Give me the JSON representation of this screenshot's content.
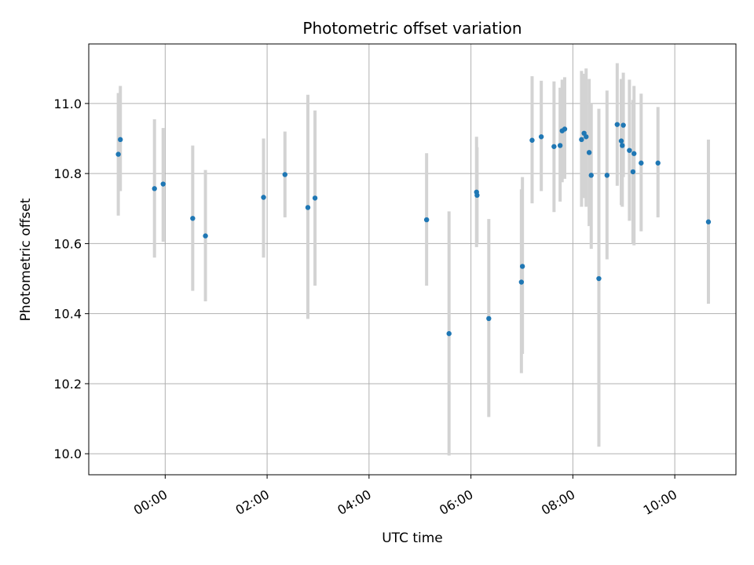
{
  "chart_data": {
    "type": "scatter",
    "title": "Photometric offset variation",
    "xlabel": "UTC time",
    "ylabel": "Photometric offset",
    "grid": true,
    "x_unit": "hours",
    "xlim": [
      -1.5,
      11.2
    ],
    "ylim": [
      9.94,
      11.17
    ],
    "xticks": [
      {
        "value": 0,
        "label": "00:00"
      },
      {
        "value": 2,
        "label": "02:00"
      },
      {
        "value": 4,
        "label": "04:00"
      },
      {
        "value": 6,
        "label": "06:00"
      },
      {
        "value": 8,
        "label": "08:00"
      },
      {
        "value": 10,
        "label": "10:00"
      }
    ],
    "yticks": [
      {
        "value": 10.0,
        "label": "10.0"
      },
      {
        "value": 10.2,
        "label": "10.2"
      },
      {
        "value": 10.4,
        "label": "10.4"
      },
      {
        "value": 10.6,
        "label": "10.6"
      },
      {
        "value": 10.8,
        "label": "10.8"
      },
      {
        "value": 11.0,
        "label": "11.0"
      }
    ],
    "marker_color": "#1f77b4",
    "errorbar_color": "#d3d3d3",
    "points": [
      {
        "x": -0.92,
        "y": 10.855,
        "lo": 10.68,
        "hi": 11.03
      },
      {
        "x": -0.88,
        "y": 10.897,
        "lo": 10.75,
        "hi": 11.05
      },
      {
        "x": -0.21,
        "y": 10.757,
        "lo": 10.56,
        "hi": 10.955
      },
      {
        "x": -0.04,
        "y": 10.77,
        "lo": 10.605,
        "hi": 10.93
      },
      {
        "x": 0.54,
        "y": 10.672,
        "lo": 10.465,
        "hi": 10.88
      },
      {
        "x": 0.79,
        "y": 10.622,
        "lo": 10.435,
        "hi": 10.81
      },
      {
        "x": 1.93,
        "y": 10.732,
        "lo": 10.56,
        "hi": 10.9
      },
      {
        "x": 2.35,
        "y": 10.797,
        "lo": 10.675,
        "hi": 10.92
      },
      {
        "x": 2.8,
        "y": 10.703,
        "lo": 10.385,
        "hi": 11.025
      },
      {
        "x": 2.94,
        "y": 10.73,
        "lo": 10.48,
        "hi": 10.98
      },
      {
        "x": 5.13,
        "y": 10.668,
        "lo": 10.48,
        "hi": 10.858
      },
      {
        "x": 5.57,
        "y": 10.343,
        "lo": 9.995,
        "hi": 10.692
      },
      {
        "x": 6.11,
        "y": 10.747,
        "lo": 10.59,
        "hi": 10.905
      },
      {
        "x": 6.12,
        "y": 10.738,
        "lo": 10.6,
        "hi": 10.875
      },
      {
        "x": 6.35,
        "y": 10.386,
        "lo": 10.105,
        "hi": 10.67
      },
      {
        "x": 6.99,
        "y": 10.49,
        "lo": 10.23,
        "hi": 10.755
      },
      {
        "x": 7.01,
        "y": 10.535,
        "lo": 10.285,
        "hi": 10.79
      },
      {
        "x": 7.2,
        "y": 10.895,
        "lo": 10.715,
        "hi": 11.078
      },
      {
        "x": 7.38,
        "y": 10.905,
        "lo": 10.75,
        "hi": 11.065
      },
      {
        "x": 7.63,
        "y": 10.877,
        "lo": 10.69,
        "hi": 11.063
      },
      {
        "x": 7.75,
        "y": 10.88,
        "lo": 10.72,
        "hi": 11.045
      },
      {
        "x": 7.79,
        "y": 10.922,
        "lo": 10.775,
        "hi": 11.068
      },
      {
        "x": 7.84,
        "y": 10.927,
        "lo": 10.785,
        "hi": 11.075
      },
      {
        "x": 8.17,
        "y": 10.897,
        "lo": 10.705,
        "hi": 11.093
      },
      {
        "x": 8.22,
        "y": 10.915,
        "lo": 10.73,
        "hi": 11.085
      },
      {
        "x": 8.26,
        "y": 10.905,
        "lo": 10.705,
        "hi": 11.1
      },
      {
        "x": 8.32,
        "y": 10.86,
        "lo": 10.65,
        "hi": 11.07
      },
      {
        "x": 8.36,
        "y": 10.795,
        "lo": 10.585,
        "hi": 11.0
      },
      {
        "x": 8.51,
        "y": 10.5,
        "lo": 10.02,
        "hi": 10.985
      },
      {
        "x": 8.67,
        "y": 10.795,
        "lo": 10.555,
        "hi": 11.037
      },
      {
        "x": 8.87,
        "y": 10.94,
        "lo": 10.765,
        "hi": 11.115
      },
      {
        "x": 8.95,
        "y": 10.893,
        "lo": 10.71,
        "hi": 11.07
      },
      {
        "x": 8.97,
        "y": 10.88,
        "lo": 10.705,
        "hi": 11.055
      },
      {
        "x": 8.99,
        "y": 10.938,
        "lo": 10.79,
        "hi": 11.088
      },
      {
        "x": 9.11,
        "y": 10.866,
        "lo": 10.665,
        "hi": 11.068
      },
      {
        "x": 9.18,
        "y": 10.805,
        "lo": 10.6,
        "hi": 11.01
      },
      {
        "x": 9.2,
        "y": 10.857,
        "lo": 10.595,
        "hi": 11.05
      },
      {
        "x": 9.34,
        "y": 10.83,
        "lo": 10.635,
        "hi": 11.028
      },
      {
        "x": 9.67,
        "y": 10.83,
        "lo": 10.675,
        "hi": 10.99
      },
      {
        "x": 10.66,
        "y": 10.662,
        "lo": 10.428,
        "hi": 10.897
      }
    ]
  }
}
